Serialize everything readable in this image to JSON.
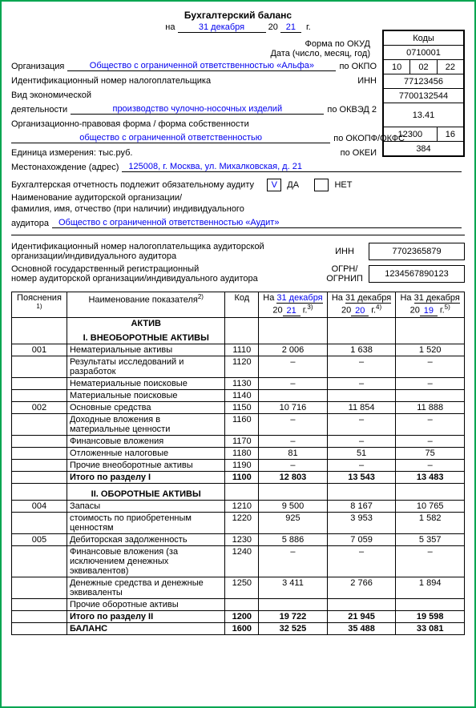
{
  "title": "Бухгалтерский баланс",
  "date_prefix": "на",
  "date_day_month": "31 декабря",
  "date_century": "20",
  "date_yy": "21",
  "date_suffix": "г.",
  "codes": {
    "header": "Коды",
    "okud": "0710001",
    "date": [
      "10",
      "02",
      "22"
    ],
    "okpo": "77123456",
    "inn": "7700132544",
    "okved": "13.41",
    "okopf": "12300",
    "okfs": "16",
    "okei": "384"
  },
  "labels": {
    "form_okud": "Форма по ОКУД",
    "date_full": "Дата (число, месяц, год)",
    "org": "Организация",
    "org_right": "по ОКПО",
    "inn": "Идентификационный номер налогоплательщика",
    "inn_right": "ИНН",
    "activity1": "Вид экономической",
    "activity2": "деятельности",
    "activity_right": "по ОКВЭД 2",
    "legal1": "Организационно-правовая форма / форма собственности",
    "legal_right": "по ОКОПФ/ОКФС",
    "unit": "Единица измерения: тыс.руб.",
    "unit_right": "по ОКЕИ",
    "addr": "Местонахождение (адрес)"
  },
  "values": {
    "org": "Общество с ограниченной ответственностью «Альфа»",
    "activity": "производство чулочно-носочных изделий",
    "legal": "общество с ограниченной ответственностью",
    "addr": "125008, г. Москва, ул. Михалковская, д. 21"
  },
  "audit": {
    "line1": "Бухгалтерская отчетность подлежит обязательному аудиту",
    "da": "ДА",
    "net": "НЕТ",
    "check": "V",
    "line2": "Наименование аудиторской организации/",
    "line3": "фамилия, имя, отчество (при наличии) индивидуального",
    "line4_label": "аудитора",
    "line4_value": "Общество с ограниченной ответственностью «Аудит»"
  },
  "idblock": {
    "r1a": "Идентификационный номер налогоплательщика аудиторской",
    "r1b": "организации/индивидуального аудитора",
    "r1_mid": "ИНН",
    "r1_val": "7702365879",
    "r2a": "Основной государственный регистрационный",
    "r2b": "номер аудиторской организации/индивидуального аудитора",
    "r2_mid": "ОГРН/ ОГРНИП",
    "r2_val": "1234567890123"
  },
  "table": {
    "hdr_expl": "Пояснения",
    "hdr_name": "Наименование показателя",
    "hdr_code": "Код",
    "hdr_on": "На",
    "hdr_20": "20",
    "hdr_g": "г.",
    "d1_dm": "31 декабря",
    "d1_yy": "21",
    "d2_dm": "31 декабря",
    "d2_yy": "20",
    "d3_dm": "31 декабря",
    "d3_yy": "19",
    "sup1": "1)",
    "sup2": "2)",
    "sup3": "3)",
    "sup4": "4)",
    "sup5": "5)",
    "sec_aktiv": "АКТИВ",
    "sec1": "I. ВНЕОБОРОТНЫЕ АКТИВЫ",
    "sec2": "II. ОБОРОТНЫЕ АКТИВЫ",
    "rows": [
      {
        "expl": "001",
        "name": "Нематериальные активы",
        "code": "1110",
        "v": [
          "2 006",
          "1 638",
          "1 520"
        ]
      },
      {
        "expl": "",
        "name": "Результаты исследований и разработок",
        "code": "1120",
        "v": [
          "–",
          "–",
          "–"
        ]
      },
      {
        "expl": "",
        "name": "Нематериальные поисковые",
        "code": "1130",
        "v": [
          "–",
          "–",
          "–"
        ]
      },
      {
        "expl": "",
        "name": "Материальные поисковые",
        "code": "1140",
        "v": [
          "",
          "",
          ""
        ]
      },
      {
        "expl": "002",
        "name": "Основные средства",
        "code": "1150",
        "v": [
          "10 716",
          "11 854",
          "11 888"
        ]
      },
      {
        "expl": "",
        "name": "Доходные вложения в материальные ценности",
        "code": "1160",
        "v": [
          "–",
          "–",
          "–"
        ]
      },
      {
        "expl": "",
        "name": "Финансовые вложения",
        "code": "1170",
        "v": [
          "–",
          "–",
          "–"
        ]
      },
      {
        "expl": "",
        "name": "Отложенные налоговые",
        "code": "1180",
        "v": [
          "81",
          "51",
          "75"
        ]
      },
      {
        "expl": "",
        "name": "Прочие внеоборотные активы",
        "code": "1190",
        "v": [
          "–",
          "–",
          "–"
        ]
      },
      {
        "expl": "",
        "name": "Итого по разделу I",
        "code": "1100",
        "v": [
          "12 803",
          "13 543",
          "13 483"
        ],
        "bold": true
      }
    ],
    "rows2": [
      {
        "expl": "004",
        "name": "Запасы",
        "code": "1210",
        "v": [
          "9 500",
          "8 167",
          "10 765"
        ]
      },
      {
        "expl": "",
        "name": "стоимость по приобретенным ценностям",
        "code": "1220",
        "v": [
          "925",
          "3 953",
          "1 582"
        ]
      },
      {
        "expl": "005",
        "name": "Дебиторская задолженность",
        "code": "1230",
        "v": [
          "5 886",
          "7 059",
          "5 357"
        ]
      },
      {
        "expl": "",
        "name": "Финансовые вложения (за исключением денежных эквивалентов)",
        "code": "1240",
        "v": [
          "–",
          "–",
          "–"
        ]
      },
      {
        "expl": "",
        "name": "Денежные средства и денежные эквиваленты",
        "code": "1250",
        "v": [
          "3 411",
          "2 766",
          "1 894"
        ]
      },
      {
        "expl": "",
        "name": "Прочие оборотные активы",
        "code": "",
        "v": [
          "",
          "",
          ""
        ]
      },
      {
        "expl": "",
        "name": "Итого по разделу II",
        "code": "1200",
        "v": [
          "19 722",
          "21 945",
          "19 598"
        ],
        "bold": true
      },
      {
        "expl": "",
        "name": "БАЛАНС",
        "code": "1600",
        "v": [
          "32 525",
          "35 488",
          "33 081"
        ],
        "bold": true
      }
    ]
  }
}
